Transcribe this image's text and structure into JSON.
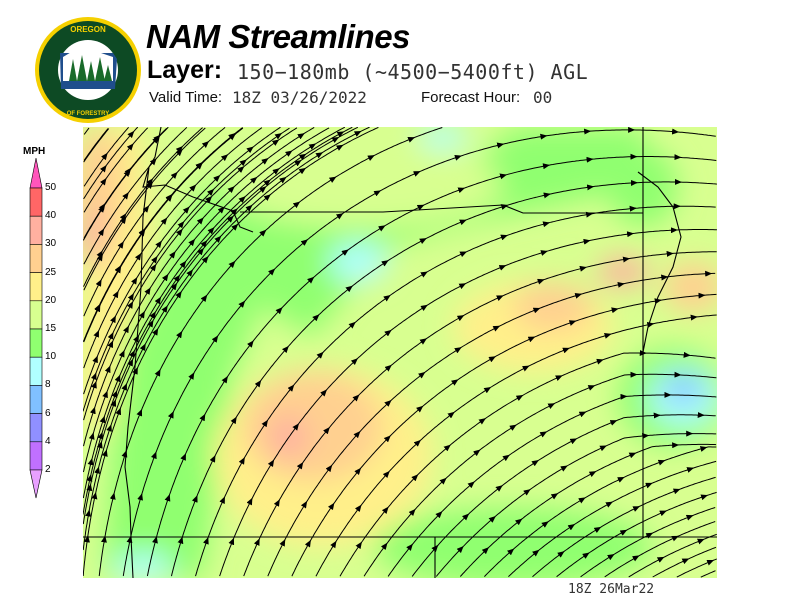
{
  "header": {
    "title": "NAM Streamlines",
    "layer_label": "Layer:",
    "layer_value": "150−180mb (~4500−5400ft) AGL",
    "valid_label": "Valid Time:",
    "valid_value": "18Z 03/26/2022",
    "forecast_label": "Forecast Hour:",
    "forecast_value": "00"
  },
  "logo": {
    "top_text": "OREGON",
    "bottom_text": "DEPARTMENT OF FORESTRY"
  },
  "legend": {
    "unit": "MPH",
    "ticks": [
      "50",
      "40",
      "30",
      "25",
      "20",
      "15",
      "10",
      "8",
      "6",
      "4",
      "2"
    ],
    "colors": [
      "#ff6666",
      "#ffb0a0",
      "#ffd090",
      "#fff08a",
      "#d8ff90",
      "#90ff70",
      "#b0ffff",
      "#80c0ff",
      "#9090ff",
      "#c070ff"
    ],
    "over_color": "#ff55bb",
    "under_color": "#e8a0ff"
  },
  "footer": {
    "timestamp": "18Z 26Mar22"
  }
}
